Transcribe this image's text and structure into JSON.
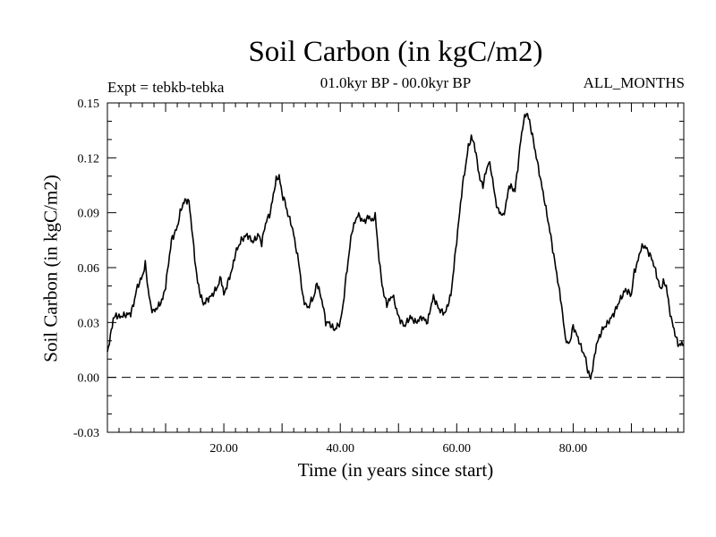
{
  "chart_data": {
    "type": "line",
    "title": "Soil Carbon (in kgC/m2)",
    "subtitle": "01.0kyr BP - 00.0kyr BP",
    "experiment": "Expt = tebkb-tebka",
    "period": "ALL_MONTHS",
    "xlabel": "Time (in years since start)",
    "ylabel": "Soil Carbon (in kgC/m2)",
    "xlim": [
      0,
      99
    ],
    "ylim": [
      -0.03,
      0.15
    ],
    "xticks": [
      "20.00",
      "40.00",
      "60.00",
      "80.00"
    ],
    "xtick_values": [
      20,
      40,
      60,
      80
    ],
    "yticks": [
      "-0.03",
      "0.00",
      "0.03",
      "0.06",
      "0.09",
      "0.12",
      "0.15"
    ],
    "ytick_values": [
      -0.03,
      0.0,
      0.03,
      0.06,
      0.09,
      0.12,
      0.15
    ],
    "reference_line": {
      "y": 0.0,
      "style": "dashed"
    },
    "grid": false,
    "series": [
      {
        "x": [
          0,
          0.5,
          1,
          1.5,
          2,
          3,
          4,
          4.5,
          5,
          5.5,
          6,
          6.5,
          7,
          7.5,
          8,
          8.5,
          9,
          9.5,
          10,
          11,
          12,
          12.5,
          13,
          13.5,
          14,
          14.5,
          15,
          15.5,
          16,
          16.5,
          17,
          18,
          19,
          19.5,
          20,
          21,
          21.5,
          22,
          23,
          24,
          25,
          26,
          26.5,
          27,
          27.5,
          28,
          28.5,
          29,
          29.5,
          30,
          30.5,
          31,
          31.5,
          32,
          33,
          33.5,
          34,
          34.5,
          35,
          35.5,
          36,
          37,
          37.5,
          38,
          39,
          40,
          40.5,
          41,
          42,
          43,
          44,
          45,
          45.5,
          46,
          46.5,
          47,
          47.5,
          48,
          49,
          50,
          51,
          52,
          53,
          54,
          55,
          55.5,
          56,
          57,
          58,
          59,
          60,
          60.5,
          61,
          61.5,
          62,
          62.5,
          63,
          63.5,
          64,
          64.5,
          65,
          65.5,
          66,
          66.5,
          67,
          68,
          68.5,
          69,
          70,
          70.5,
          71,
          71.5,
          72,
          72.5,
          73,
          74,
          75,
          76,
          77,
          78,
          78.5,
          79,
          79.5,
          80,
          81,
          81.5,
          82,
          82.5,
          83,
          83.5,
          84,
          85,
          86,
          87,
          88,
          89,
          90,
          90.5,
          91,
          91.5,
          92,
          92.5,
          93,
          93.5,
          94,
          94.5,
          95,
          95.5,
          96,
          96.5,
          97,
          98,
          99
        ],
        "y": [
          0.014,
          0.022,
          0.032,
          0.034,
          0.033,
          0.034,
          0.035,
          0.04,
          0.048,
          0.052,
          0.055,
          0.062,
          0.048,
          0.038,
          0.036,
          0.038,
          0.04,
          0.043,
          0.05,
          0.075,
          0.082,
          0.09,
          0.095,
          0.097,
          0.096,
          0.082,
          0.065,
          0.052,
          0.045,
          0.04,
          0.042,
          0.045,
          0.05,
          0.055,
          0.045,
          0.055,
          0.06,
          0.068,
          0.075,
          0.078,
          0.074,
          0.078,
          0.073,
          0.082,
          0.087,
          0.09,
          0.1,
          0.108,
          0.11,
          0.1,
          0.096,
          0.089,
          0.085,
          0.078,
          0.06,
          0.045,
          0.04,
          0.038,
          0.042,
          0.044,
          0.052,
          0.04,
          0.03,
          0.03,
          0.026,
          0.03,
          0.04,
          0.055,
          0.08,
          0.089,
          0.085,
          0.088,
          0.085,
          0.089,
          0.07,
          0.055,
          0.045,
          0.04,
          0.045,
          0.033,
          0.028,
          0.033,
          0.03,
          0.033,
          0.03,
          0.038,
          0.044,
          0.037,
          0.035,
          0.045,
          0.075,
          0.09,
          0.105,
          0.115,
          0.126,
          0.131,
          0.128,
          0.118,
          0.108,
          0.105,
          0.112,
          0.118,
          0.112,
          0.1,
          0.092,
          0.088,
          0.095,
          0.105,
          0.102,
          0.115,
          0.13,
          0.14,
          0.145,
          0.14,
          0.132,
          0.115,
          0.098,
          0.08,
          0.06,
          0.04,
          0.025,
          0.018,
          0.02,
          0.028,
          0.02,
          0.015,
          0.012,
          0.004,
          -0.001,
          0.008,
          0.018,
          0.026,
          0.03,
          0.035,
          0.042,
          0.048,
          0.045,
          0.058,
          0.062,
          0.069,
          0.072,
          0.071,
          0.068,
          0.065,
          0.06,
          0.054,
          0.048,
          0.052,
          0.05,
          0.038,
          0.03,
          0.018,
          0.018
        ]
      }
    ]
  }
}
